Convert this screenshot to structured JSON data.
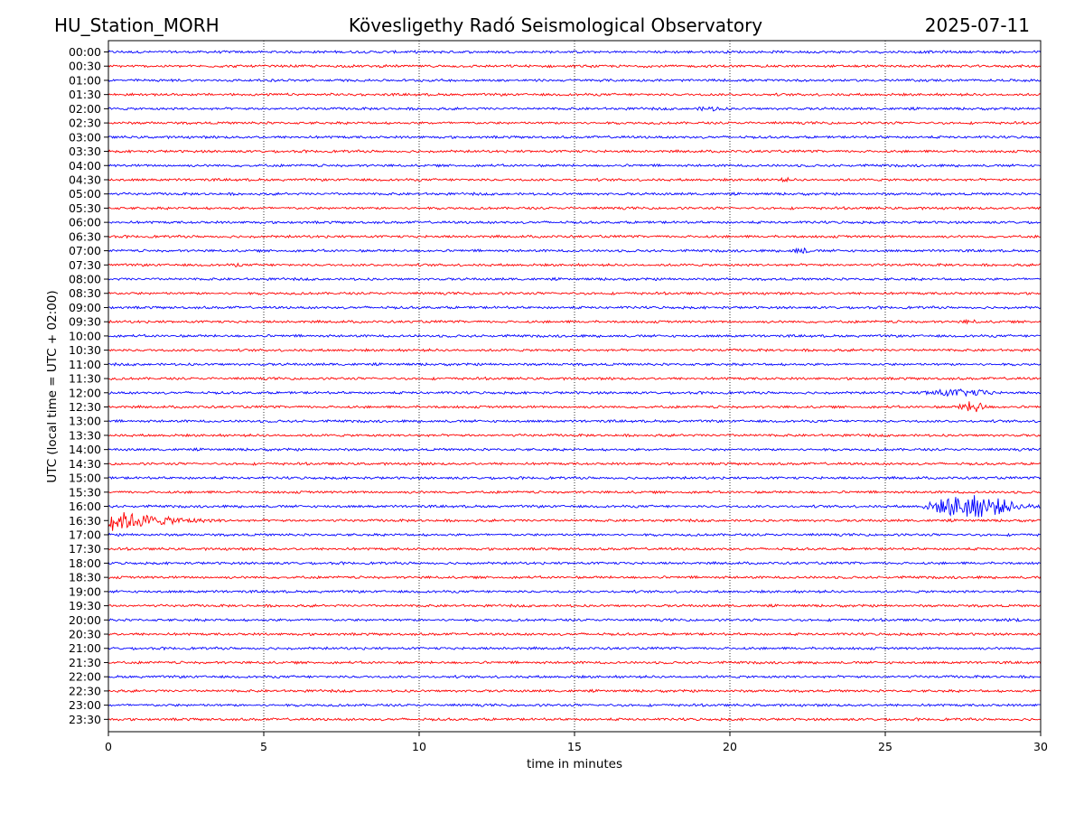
{
  "header": {
    "station": "HU_Station_MORH",
    "observatory": "Kövesligethy Radó Seismological Observatory",
    "date": "2025-07-11"
  },
  "chart_data": {
    "type": "line",
    "title": "Kövesligethy Radó Seismological Observatory",
    "xlabel": "time in minutes",
    "ylabel": "UTC (local time = UTC + 02:00)",
    "xlim": [
      0,
      30
    ],
    "x_ticks": [
      "0",
      "5",
      "10",
      "15",
      "20",
      "25",
      "30"
    ],
    "x_tick_values": [
      0,
      5,
      10,
      15,
      20,
      25,
      30
    ],
    "grid": "vertical dotted lines at x ticks",
    "row_labels": [
      "00:00",
      "00:30",
      "01:00",
      "01:30",
      "02:00",
      "02:30",
      "03:00",
      "03:30",
      "04:00",
      "04:30",
      "05:00",
      "05:30",
      "06:00",
      "06:30",
      "07:00",
      "07:30",
      "08:00",
      "08:30",
      "09:00",
      "09:30",
      "10:00",
      "10:30",
      "11:00",
      "11:30",
      "12:00",
      "12:30",
      "13:00",
      "13:30",
      "14:00",
      "14:30",
      "15:00",
      "15:30",
      "16:00",
      "16:30",
      "17:00",
      "17:30",
      "18:00",
      "18:30",
      "19:00",
      "19:30",
      "20:00",
      "20:30",
      "21:00",
      "21:30",
      "22:00",
      "22:30",
      "23:00",
      "23:30"
    ],
    "row_colors": [
      "#0000ff",
      "#ff0000"
    ],
    "noise_amplitude": 0.2,
    "events": [
      {
        "row": "02:00",
        "x_start": 18.8,
        "x_end": 20.2,
        "amplitude": 0.35
      },
      {
        "row": "04:30",
        "x_start": 21.5,
        "x_end": 22.2,
        "amplitude": 0.3
      },
      {
        "row": "07:00",
        "x_start": 21.9,
        "x_end": 22.8,
        "amplitude": 0.45
      },
      {
        "row": "07:30",
        "x_start": 3.9,
        "x_end": 4.4,
        "amplitude": 0.3
      },
      {
        "row": "09:30",
        "x_start": 27.3,
        "x_end": 28.3,
        "amplitude": 0.3
      },
      {
        "row": "12:00",
        "x_start": 25.8,
        "x_end": 29.5,
        "amplitude": 0.5
      },
      {
        "row": "12:30",
        "x_start": 27.3,
        "x_end": 28.5,
        "amplitude": 0.8
      },
      {
        "row": "16:00",
        "x_start": 26.2,
        "x_end": 30,
        "amplitude": 1.6
      },
      {
        "row": "16:30",
        "x_start": 0,
        "x_end": 3.8,
        "amplitude": 1.6
      },
      {
        "row": "20:00",
        "x_start": 28.8,
        "x_end": 29.6,
        "amplitude": 0.3
      }
    ]
  }
}
